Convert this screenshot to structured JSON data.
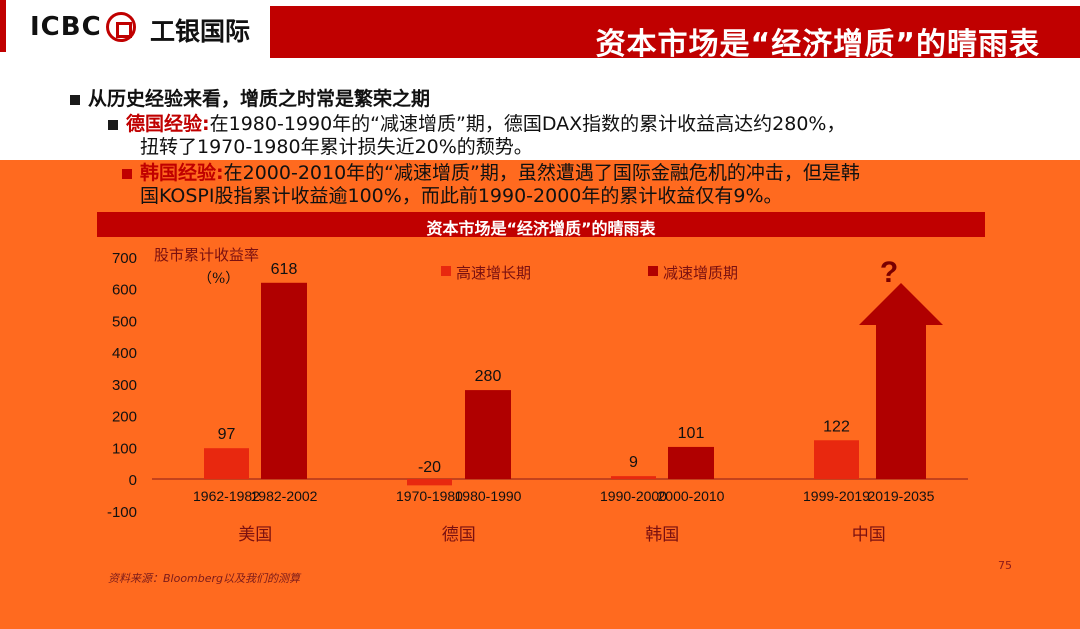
{
  "header": {
    "logo_text": "ICBC",
    "logo_cn": "工银国际",
    "title": "资本市场是“经济增质”的晴雨表"
  },
  "bullets": {
    "main": "从历史经验来看，增质之时常是繁荣之期",
    "germany_label": "德国经验:",
    "germany_text_1": "在1980-1990年的“减速增质”期，德国DAX指数的累计收益高达约280%，",
    "germany_text_2": "扭转了1970-1980年累计损失近20%的颓势。",
    "korea_label": "韩国经验:",
    "korea_text_1": "在2000-2010年的“减速增质”期，虽然遭遇了国际金融危机的冲击，但是韩",
    "korea_text_2": "国KOSPI股指累计收益逾100%，而此前1990-2000年的累计收益仅有9%。"
  },
  "chart_data": {
    "type": "bar",
    "title": "资本市场是“经济增质”的晴雨表",
    "ylabel": "股市累计收益率",
    "ylabel_unit": "（%）",
    "ylim": [
      -100,
      700
    ],
    "yticks": [
      700,
      600,
      500,
      400,
      300,
      200,
      100,
      0,
      -100
    ],
    "legend": [
      {
        "name": "高速增长期",
        "color": "#e8280f"
      },
      {
        "name": "减速增质期",
        "color": "#b00000"
      }
    ],
    "legend_position": "top",
    "groups": [
      {
        "country": "美国",
        "bars": [
          {
            "label": "1962-1982",
            "value": 97,
            "value_label": "97",
            "kind": "high"
          },
          {
            "label": "1982-2002",
            "value": 618,
            "value_label": "618",
            "kind": "slow"
          }
        ]
      },
      {
        "country": "德国",
        "bars": [
          {
            "label": "1970-1980",
            "value": -20,
            "value_label": "-20",
            "kind": "high"
          },
          {
            "label": "1980-1990",
            "value": 280,
            "value_label": "280",
            "kind": "slow"
          }
        ]
      },
      {
        "country": "韩国",
        "bars": [
          {
            "label": "1990-2000",
            "value": 9,
            "value_label": "9",
            "kind": "high"
          },
          {
            "label": "2000-2010",
            "value": 101,
            "value_label": "101",
            "kind": "slow"
          }
        ]
      },
      {
        "country": "中国",
        "bars": [
          {
            "label": "1999-2019",
            "value": 122,
            "value_label": "122",
            "kind": "high"
          },
          {
            "label": "2019-2035",
            "value": null,
            "value_label": "?",
            "kind": "projection"
          }
        ]
      }
    ]
  },
  "footer": {
    "source": "资料来源：Bloomberg以及我们的测算",
    "page_number": "75"
  }
}
